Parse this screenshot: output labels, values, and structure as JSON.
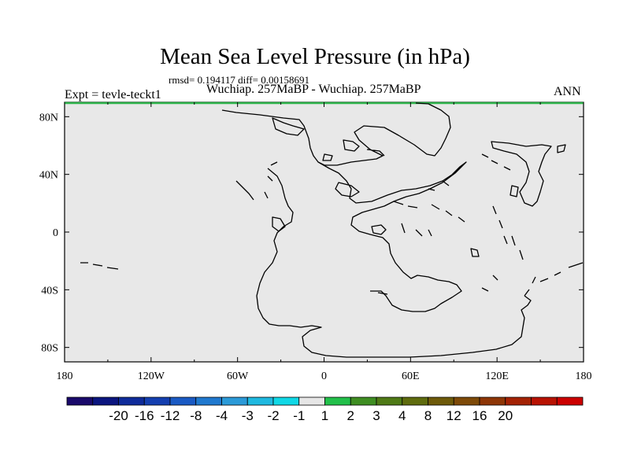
{
  "title": "Mean Sea Level Pressure (in hPa)",
  "stats": "rmsd= 0.194117 diff= 0.00158691",
  "subtitle": "Wuchiap. 257MaBP - Wuchiap. 257MaBP",
  "expt_label": "Expt = tevle-teckt1",
  "season": "ANN",
  "map": {
    "background_color": "#e8e8e8",
    "diff_contour_color": "#2db34a",
    "lon_ticks": [
      "180",
      "120W",
      "60W",
      "0",
      "60E",
      "120E",
      "180"
    ],
    "lat_ticks": [
      "80N",
      "40N",
      "0",
      "40S",
      "80S"
    ]
  },
  "colorbar": {
    "colors": [
      "#1a0a6b",
      "#0b157f",
      "#0f2b9a",
      "#143fb0",
      "#1a5ac4",
      "#2079cf",
      "#2b9ad8",
      "#1fb9e0",
      "#10d8e6",
      "#e6e6e6",
      "#22c04a",
      "#3f8e22",
      "#4f7a16",
      "#5f6c0e",
      "#6e5a0a",
      "#7e4a08",
      "#8e3606",
      "#a42204",
      "#b81202",
      "#cc0000"
    ],
    "labels": [
      "-20",
      "-16",
      "-12",
      "-8",
      "-4",
      "-3",
      "-2",
      "-1",
      "1",
      "2",
      "3",
      "4",
      "8",
      "12",
      "16",
      "20"
    ]
  }
}
